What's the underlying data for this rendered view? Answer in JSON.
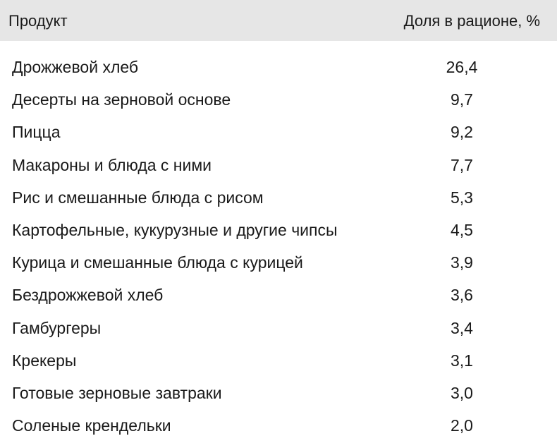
{
  "table": {
    "header": [
      "Продукт",
      "Доля в рационе, %"
    ],
    "rows": [
      [
        "Дрожжевой хлеб",
        "26,4"
      ],
      [
        "Десерты на зерновой основе",
        "9,7"
      ],
      [
        "Пицца",
        "9,2"
      ],
      [
        "Макароны и блюда с ними",
        "7,7"
      ],
      [
        "Рис и смешанные блюда с рисом",
        "5,3"
      ],
      [
        "Картофельные, кукурузные и другие чипсы",
        "4,5"
      ],
      [
        "Курица и смешанные блюда с курицей",
        "3,9"
      ],
      [
        "Бездрожжевой хлеб",
        "3,6"
      ],
      [
        "Гамбургеры",
        "3,4"
      ],
      [
        "Крекеры",
        "3,1"
      ],
      [
        "Готовые зерновые завтраки",
        "3,0"
      ],
      [
        "Соленые крендельки",
        "2,0"
      ]
    ]
  }
}
